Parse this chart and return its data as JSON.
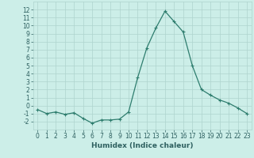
{
  "x": [
    0,
    1,
    2,
    3,
    4,
    5,
    6,
    7,
    8,
    9,
    10,
    11,
    12,
    13,
    14,
    15,
    16,
    17,
    18,
    19,
    20,
    21,
    22,
    23
  ],
  "y": [
    -0.5,
    -1.0,
    -0.8,
    -1.1,
    -0.9,
    -1.6,
    -2.2,
    -1.8,
    -1.8,
    -1.7,
    -0.8,
    3.5,
    7.2,
    9.7,
    11.8,
    10.5,
    9.2,
    5.0,
    2.0,
    1.3,
    0.7,
    0.3,
    -0.3,
    -1.0
  ],
  "line_color": "#2e7d6e",
  "marker": "+",
  "marker_size": 3,
  "marker_linewidth": 0.8,
  "line_width": 0.9,
  "bg_color": "#cceee8",
  "grid_color": "#aed4ce",
  "xlabel": "Humidex (Indice chaleur)",
  "xlim": [
    -0.5,
    23.5
  ],
  "ylim": [
    -3,
    13
  ],
  "yticks": [
    -2,
    -1,
    0,
    1,
    2,
    3,
    4,
    5,
    6,
    7,
    8,
    9,
    10,
    11,
    12
  ],
  "xticks": [
    0,
    1,
    2,
    3,
    4,
    5,
    6,
    7,
    8,
    9,
    10,
    11,
    12,
    13,
    14,
    15,
    16,
    17,
    18,
    19,
    20,
    21,
    22,
    23
  ],
  "tick_label_size": 5.5,
  "xlabel_size": 6.5,
  "tick_color": "#2e6060"
}
